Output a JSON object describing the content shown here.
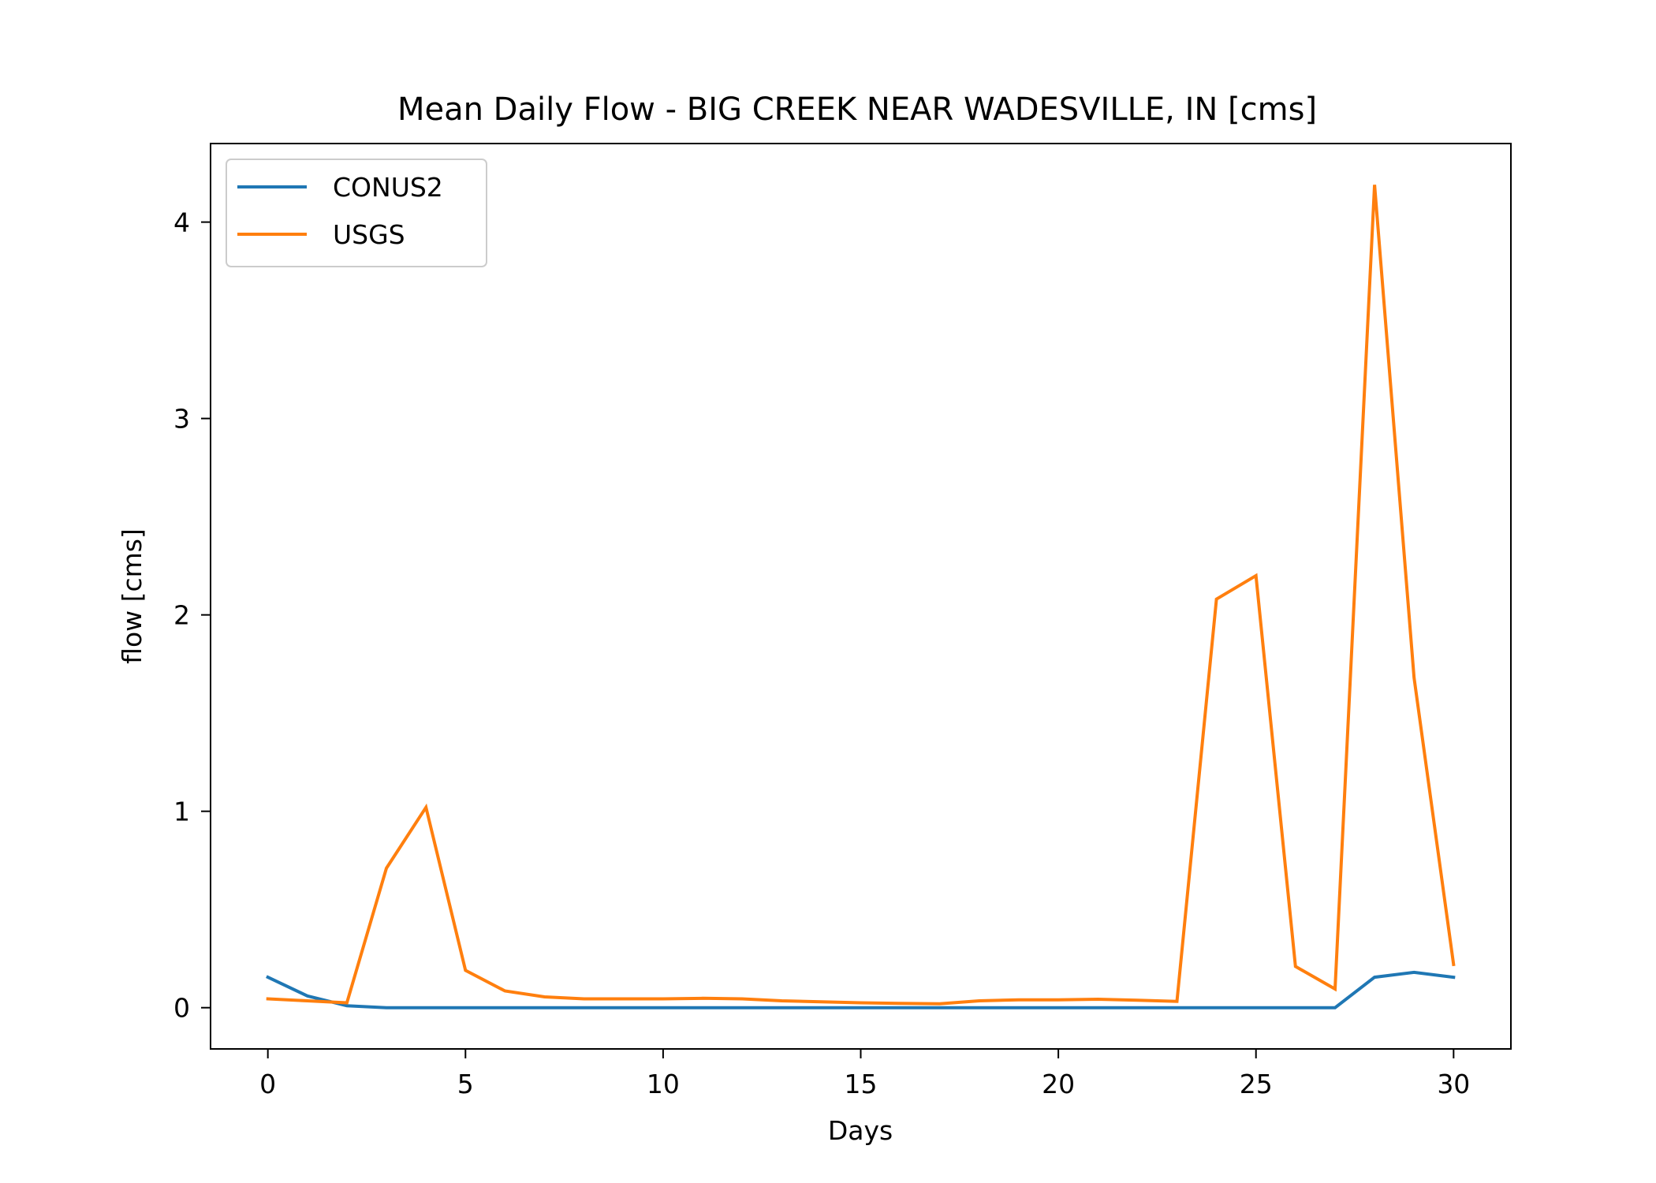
{
  "chart_data": {
    "type": "line",
    "title": "Mean Daily Flow - BIG CREEK NEAR WADESVILLE, IN [cms]",
    "xlabel": "Days",
    "ylabel": "flow [cms]",
    "xlim": [
      -1.45,
      31.45
    ],
    "ylim": [
      -0.21,
      4.4
    ],
    "xticks": [
      0,
      5,
      10,
      15,
      20,
      25,
      30
    ],
    "yticks": [
      0,
      1,
      2,
      3,
      4
    ],
    "grid": false,
    "legend_position": "upper-left",
    "x": [
      0,
      1,
      2,
      3,
      4,
      5,
      6,
      7,
      8,
      9,
      10,
      11,
      12,
      13,
      14,
      15,
      16,
      17,
      18,
      19,
      20,
      21,
      22,
      23,
      24,
      25,
      26,
      27,
      28,
      29,
      30
    ],
    "series": [
      {
        "name": "CONUS2",
        "color": "#1f77b4",
        "values": [
          0.155,
          0.06,
          0.01,
          0.0,
          0.0,
          0.0,
          0.0,
          0.0,
          0.0,
          0.0,
          0.0,
          0.0,
          0.0,
          0.0,
          0.0,
          0.0,
          0.0,
          0.0,
          0.0,
          0.0,
          0.0,
          0.0,
          0.0,
          0.0,
          0.0,
          0.0,
          0.0,
          0.0,
          0.155,
          0.18,
          0.155
        ]
      },
      {
        "name": "USGS",
        "color": "#ff7f0e",
        "values": [
          0.045,
          0.035,
          0.025,
          0.71,
          1.02,
          0.19,
          0.085,
          0.055,
          0.045,
          0.045,
          0.045,
          0.048,
          0.045,
          0.035,
          0.03,
          0.025,
          0.022,
          0.02,
          0.035,
          0.04,
          0.04,
          0.043,
          0.038,
          0.032,
          2.08,
          2.2,
          0.21,
          0.095,
          4.19,
          1.68,
          0.22
        ]
      }
    ]
  }
}
